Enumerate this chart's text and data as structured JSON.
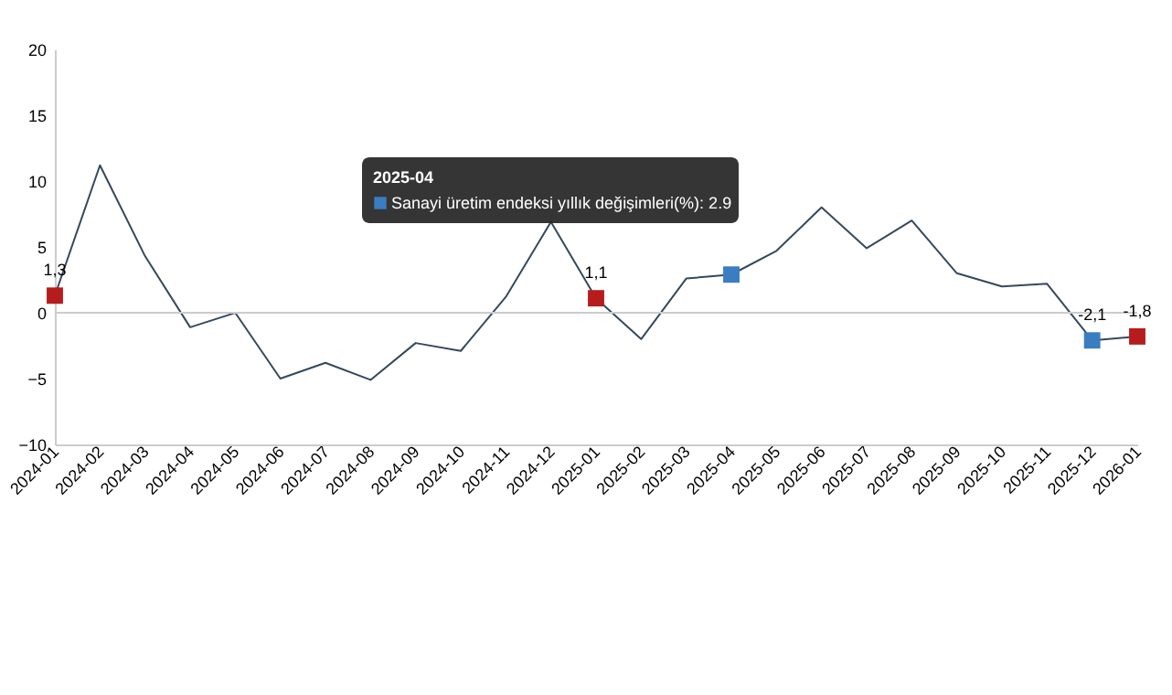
{
  "chart_data": {
    "type": "line",
    "categories": [
      "2024-01",
      "2024-02",
      "2024-03",
      "2024-04",
      "2024-05",
      "2024-06",
      "2024-07",
      "2024-08",
      "2024-09",
      "2024-10",
      "2024-11",
      "2024-12",
      "2025-01",
      "2025-02",
      "2025-03",
      "2025-04",
      "2025-05",
      "2025-06",
      "2025-07",
      "2025-08",
      "2025-09",
      "2025-10",
      "2025-11",
      "2025-12",
      "2026-01"
    ],
    "series": [
      {
        "color": "#34495e",
        "values": [
          1.3,
          11.2,
          4.3,
          -1.1,
          0,
          -5.0,
          -3.8,
          -5.1,
          -2.3,
          -2.9,
          1.2,
          6.9,
          1.1,
          -2.0,
          2.6,
          2.9,
          4.7,
          8.0,
          4.9,
          7.0,
          3.0,
          2.0,
          2.2,
          -2.1,
          -1.8
        ],
        "colors": [
          "#b71c1c",
          null,
          null,
          null,
          null,
          null,
          null,
          null,
          null,
          null,
          null,
          null,
          "#b71c1c",
          null,
          null,
          "#3a7dc0",
          null,
          null,
          null,
          null,
          null,
          null,
          null,
          "#3a7dc0",
          "#b71c1c"
        ],
        "value_labels": [
          "1,3",
          null,
          null,
          null,
          null,
          null,
          null,
          null,
          null,
          null,
          null,
          null,
          "1,1",
          null,
          null,
          null,
          null,
          null,
          null,
          null,
          null,
          null,
          null,
          "-2,1",
          "-1,8"
        ]
      }
    ],
    "line_style": "solid",
    "ylim": [
      -10,
      20
    ],
    "yticks": [
      -10,
      -5,
      0,
      5,
      10,
      15,
      20
    ],
    "ref_lines": [
      {
        "axis": "y",
        "value": 0,
        "color": "#cccccc"
      }
    ],
    "annotations": [
      "2025-04",
      "Sanayi üretim endeksi yıllık değişimleri(%): 2.9"
    ]
  }
}
